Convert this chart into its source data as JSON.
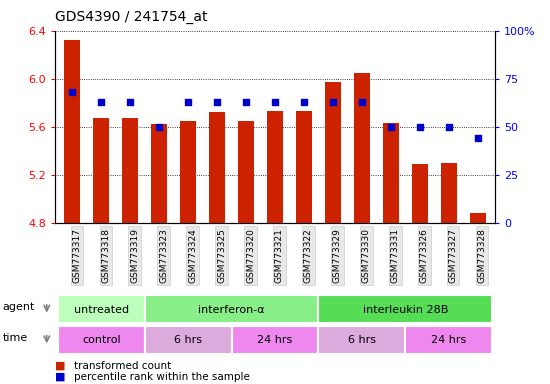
{
  "title": "GDS4390 / 241754_at",
  "samples": [
    "GSM773317",
    "GSM773318",
    "GSM773319",
    "GSM773323",
    "GSM773324",
    "GSM773325",
    "GSM773320",
    "GSM773321",
    "GSM773322",
    "GSM773329",
    "GSM773330",
    "GSM773331",
    "GSM773326",
    "GSM773327",
    "GSM773328"
  ],
  "bar_values": [
    6.32,
    5.67,
    5.67,
    5.62,
    5.65,
    5.72,
    5.65,
    5.73,
    5.73,
    5.97,
    6.05,
    5.63,
    5.29,
    5.3,
    4.88
  ],
  "percentile_values": [
    68,
    63,
    63,
    50,
    63,
    63,
    63,
    63,
    63,
    63,
    63,
    50,
    50,
    50,
    44
  ],
  "ylim_left": [
    4.8,
    6.4
  ],
  "ylim_right": [
    0,
    100
  ],
  "yticks_left": [
    4.8,
    5.2,
    5.6,
    6.0,
    6.4
  ],
  "yticks_right": [
    0,
    25,
    50,
    75,
    100
  ],
  "ytick_labels_right": [
    "0",
    "25",
    "50",
    "75",
    "100%"
  ],
  "bar_color": "#cc2200",
  "dot_color": "#0000cc",
  "bar_width": 0.55,
  "agent_groups": [
    {
      "label": "untreated",
      "start": 0,
      "end": 3,
      "color": "#bbffbb"
    },
    {
      "label": "interferon-α",
      "start": 3,
      "end": 9,
      "color": "#88ee88"
    },
    {
      "label": "interleukin 28B",
      "start": 9,
      "end": 15,
      "color": "#55dd55"
    }
  ],
  "time_groups": [
    {
      "label": "control",
      "start": 0,
      "end": 3,
      "color": "#ee88ee"
    },
    {
      "label": "6 hrs",
      "start": 3,
      "end": 6,
      "color": "#ddaadd"
    },
    {
      "label": "24 hrs",
      "start": 6,
      "end": 9,
      "color": "#ee88ee"
    },
    {
      "label": "6 hrs",
      "start": 9,
      "end": 12,
      "color": "#ddaadd"
    },
    {
      "label": "24 hrs",
      "start": 12,
      "end": 15,
      "color": "#ee88ee"
    }
  ],
  "legend_items": [
    {
      "color": "#cc2200",
      "label": "transformed count"
    },
    {
      "color": "#0000cc",
      "label": "percentile rank within the sample"
    }
  ]
}
